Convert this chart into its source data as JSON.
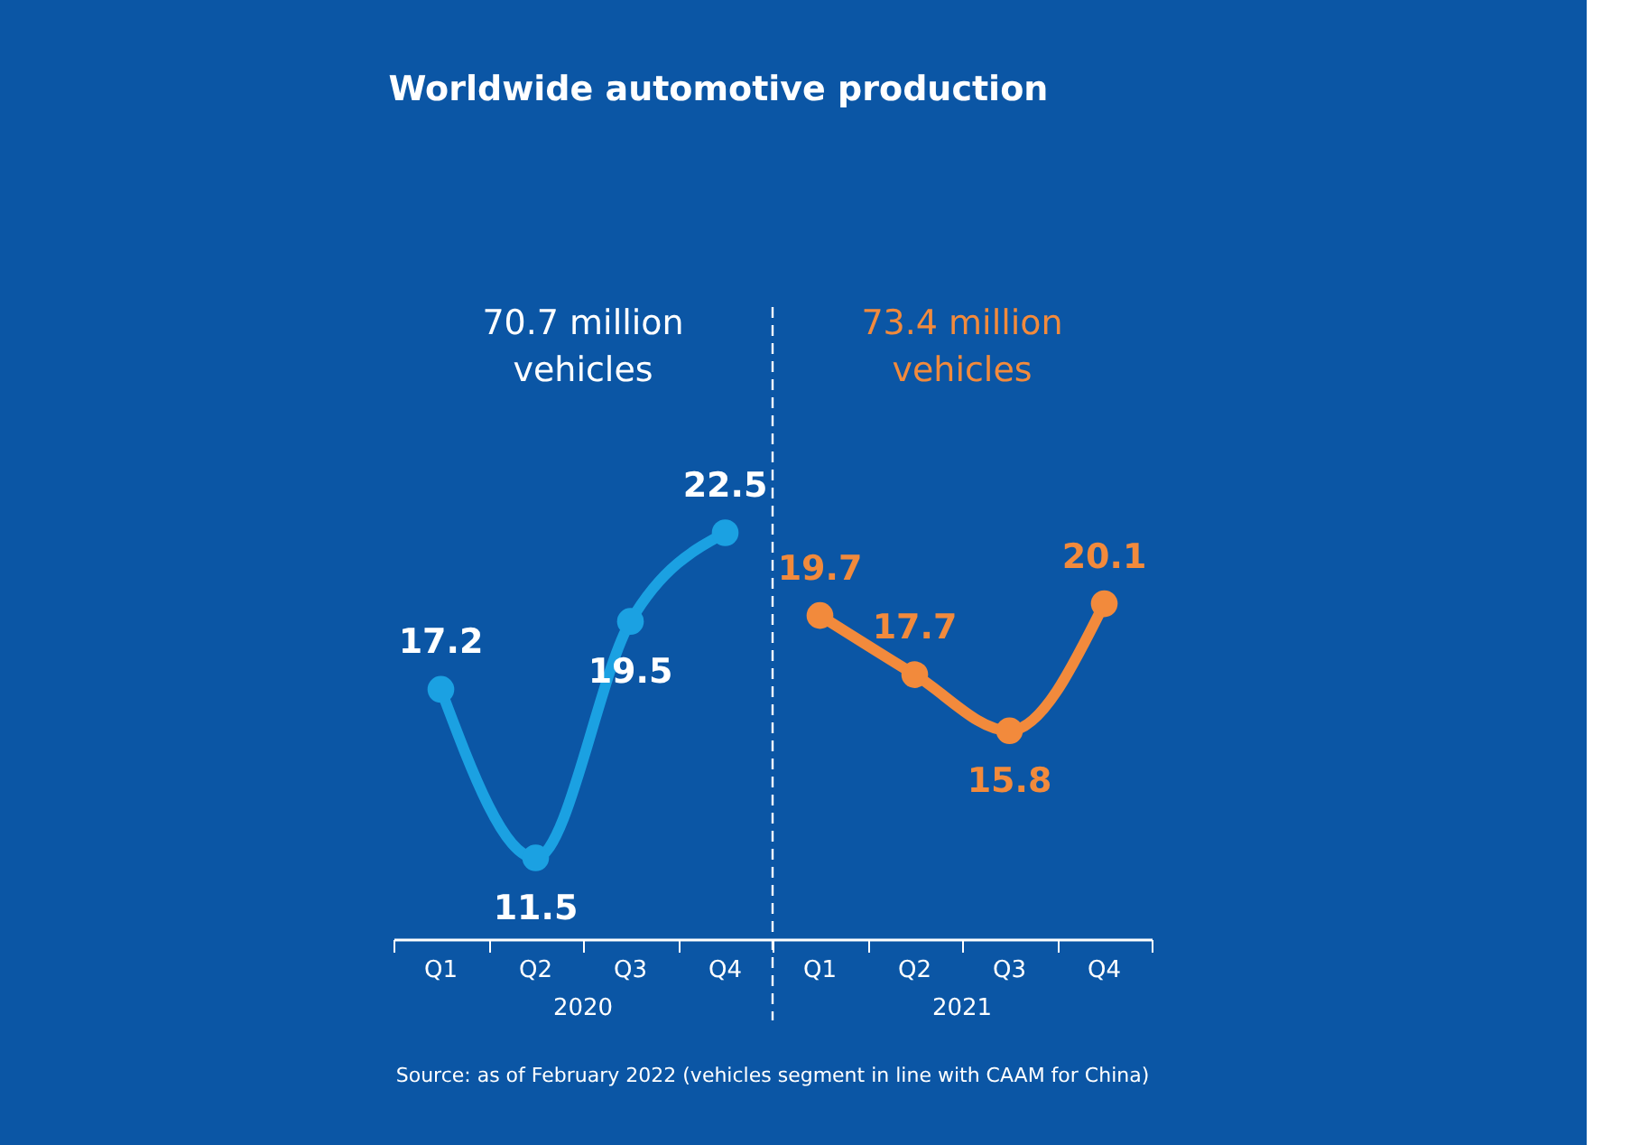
{
  "chart_data": {
    "type": "line",
    "title": "Worldwide automotive production",
    "categories": [
      "Q1",
      "Q2",
      "Q3",
      "Q4",
      "Q1",
      "Q2",
      "Q3",
      "Q4"
    ],
    "tick_labels": "x",
    "grid": false,
    "marker": "circle",
    "line_style": "solid",
    "data_labels": true,
    "series": [
      {
        "color": "#1ba1e2",
        "values": [
          17.2,
          11.5,
          19.5,
          22.5,
          null,
          null,
          null,
          null
        ]
      },
      {
        "color": "#f28a3c",
        "values": [
          null,
          null,
          null,
          null,
          19.7,
          17.7,
          15.8,
          20.1
        ]
      }
    ],
    "annotations": [
      "70.7 million\nvehicles",
      "73.4 million\nvehicles",
      "2020",
      "2021",
      "Source: as of February 2022 (vehicles segment in line with CAAM for China)"
    ]
  }
}
